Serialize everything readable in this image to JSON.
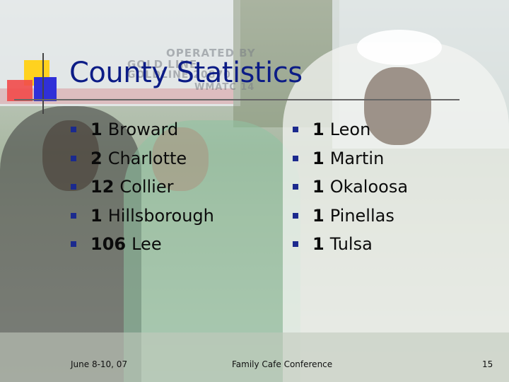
{
  "slide": {
    "title": "County Statistics",
    "photo_text": [
      "OPERATED BY",
      "GOLD LINE",
      "GOLDLINE 20870",
      "WMATC 14"
    ],
    "left_column": [
      {
        "count": "1",
        "county": "Broward"
      },
      {
        "count": "2",
        "county": "Charlotte"
      },
      {
        "count": "12",
        "county": "Collier"
      },
      {
        "count": "1",
        "county": "Hillsborough"
      },
      {
        "count": "106",
        "county": "Lee"
      }
    ],
    "right_column": [
      {
        "count": "1",
        "county": "Leon"
      },
      {
        "count": "1",
        "county": "Martin"
      },
      {
        "count": "1",
        "county": "Okaloosa"
      },
      {
        "count": "1",
        "county": "Pinellas"
      },
      {
        "count": "1",
        "county": "Tulsa"
      }
    ],
    "footer": {
      "date": "June 8-10, 07",
      "conference": "Family Cafe Conference",
      "page_number": "15"
    }
  },
  "colors": {
    "title": "#0c1c86",
    "bullet": "#1b2a8e",
    "logo_yellow": "#ffd21f",
    "logo_red": "#f24a4a",
    "logo_blue": "#3030d8"
  }
}
